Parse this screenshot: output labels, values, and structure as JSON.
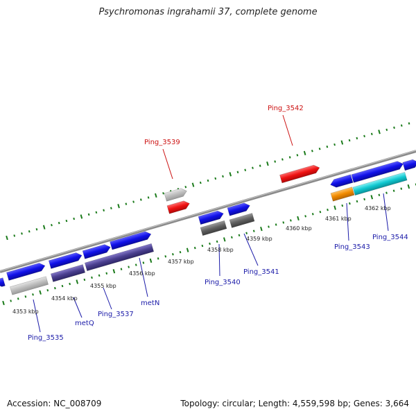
{
  "header": {
    "title": "Psychromonas ingrahamii 37, complete genome"
  },
  "footer": {
    "accession": "Accession: NC_008709",
    "summary": "Topology: circular; Length: 4,559,598 bp; Genes: 3,664"
  },
  "colors": {
    "backbone": "#8a8a8a",
    "tick_dots": "#1a7a1a",
    "label_blue": "#1a1aa8",
    "label_red": "#cc1111",
    "gene_blue": "#1010e8",
    "gene_red": "#ee1111",
    "gene_gray": "#b8b8b8",
    "gene_darkgray": "#606060",
    "gene_purple": "#4a3f8f",
    "gene_orange": "#f08a00",
    "gene_cyan": "#10c8d0"
  },
  "scale_labels": [
    "4353 kbp",
    "4354 kbp",
    "4355 kbp",
    "4356 kbp",
    "4357 kbp",
    "4358 kbp",
    "4359 kbp",
    "4360 kbp",
    "4361 kbp",
    "4362 kbp"
  ],
  "gene_labels": [
    {
      "text": "Ping_3535",
      "color": "blue"
    },
    {
      "text": "metQ",
      "color": "blue"
    },
    {
      "text": "Ping_3537",
      "color": "blue"
    },
    {
      "text": "metN",
      "color": "blue"
    },
    {
      "text": "Ping_3539",
      "color": "red"
    },
    {
      "text": "Ping_3540",
      "color": "blue"
    },
    {
      "text": "Ping_3541",
      "color": "blue"
    },
    {
      "text": "Ping_3542",
      "color": "red"
    },
    {
      "text": "Ping_3543",
      "color": "blue"
    },
    {
      "text": "Ping_3544",
      "color": "blue"
    }
  ]
}
